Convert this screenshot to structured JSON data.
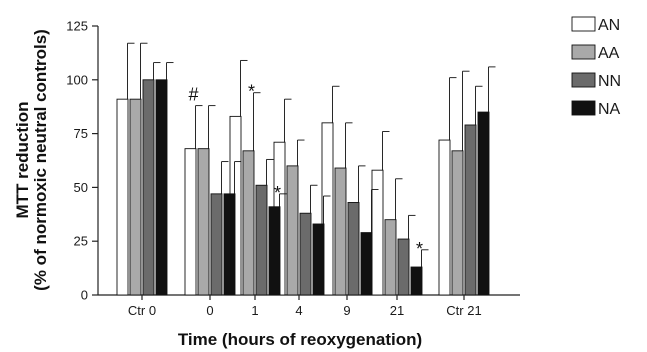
{
  "chart_data": {
    "type": "bar",
    "xlabel": "Time (hours of reoxygenation)",
    "ylabel_line1": "MTT reduction",
    "ylabel_line2": "(% of normoxic neutral controls)",
    "ylim": [
      0,
      125
    ],
    "yticks": [
      0,
      25,
      50,
      75,
      100,
      125
    ],
    "categories": [
      "Ctr 0",
      "0",
      "1",
      "4",
      "9",
      "21",
      "Ctr 21"
    ],
    "legend_position": "top-right",
    "series": [
      {
        "name": "AN",
        "color": "#ffffff",
        "values": [
          91,
          68,
          83,
          71,
          80,
          58,
          72
        ],
        "errors": [
          26,
          20,
          26,
          20,
          17,
          18,
          29
        ]
      },
      {
        "name": "AA",
        "color": "#a9a9a9",
        "values": [
          91,
          68,
          67,
          60,
          59,
          35,
          67
        ],
        "errors": [
          26,
          20,
          27,
          12,
          21,
          19,
          37
        ]
      },
      {
        "name": "NN",
        "color": "#6b6b6b",
        "values": [
          100,
          47,
          51,
          38,
          43,
          26,
          79
        ],
        "errors": [
          8,
          15,
          12,
          13,
          17,
          11,
          18
        ]
      },
      {
        "name": "NA",
        "color": "#111111",
        "values": [
          100,
          47,
          41,
          33,
          29,
          13,
          85
        ],
        "errors": [
          8,
          15,
          6,
          13,
          20,
          8,
          21
        ]
      }
    ],
    "annotations": [
      {
        "text": "#",
        "category": "0",
        "series": "AN"
      },
      {
        "text": "*",
        "category": "1",
        "series": "AA"
      },
      {
        "text": "*",
        "category": "1",
        "series": "NA"
      },
      {
        "text": "*",
        "category": "21",
        "series": "NA"
      }
    ]
  }
}
